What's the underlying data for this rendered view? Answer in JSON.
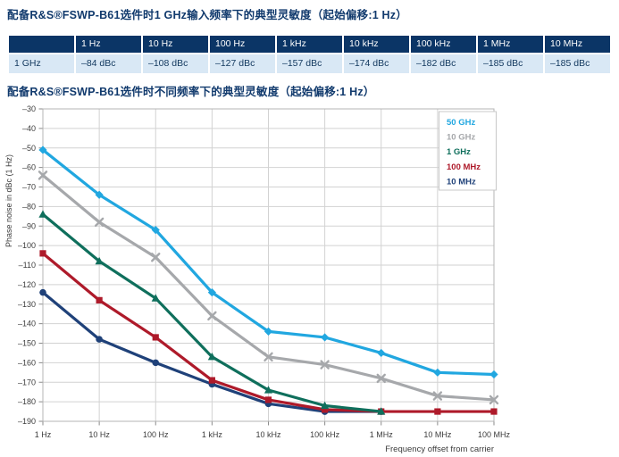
{
  "titles": {
    "table_section": "配备R&S®FSWP-B61选件时1 GHz输入频率下的典型灵敏度（起始偏移:1 Hz）",
    "chart_section": "配备R&S®FSWP-B61选件时不同频率下的典型灵敏度（起始偏移:1 Hz）"
  },
  "table": {
    "corner": "",
    "row_label": "1 GHz",
    "columns": [
      "1 Hz",
      "10 Hz",
      "100 Hz",
      "1 kHz",
      "10 kHz",
      "100 kHz",
      "1 MHz",
      "10 MHz"
    ],
    "values": [
      "–84 dBc",
      "–108 dBc",
      "–127 dBc",
      "–157 dBc",
      "–174 dBc",
      "–182 dBc",
      "–185 dBc",
      "–185 dBc"
    ]
  },
  "chart_data": {
    "type": "line",
    "title": "",
    "xlabel": "Frequency offset from carrier",
    "ylabel": "Phase noise in dBc (1 Hz)",
    "x_scale": "log-decades",
    "x_ticks": [
      "1 Hz",
      "10 Hz",
      "100 Hz",
      "1 kHz",
      "10 kHz",
      "100 kHz",
      "1 MHz",
      "10 MHz",
      "100 MHz"
    ],
    "ylim": [
      -190,
      -30
    ],
    "y_tick_step": 10,
    "grid": true,
    "legend_position": "top-right",
    "series": [
      {
        "name": "50 GHz",
        "color": "#21a7e0",
        "marker": "diamond",
        "values": [
          -51,
          -74,
          -92,
          -124,
          -144,
          -147,
          -155,
          -165,
          -166
        ]
      },
      {
        "name": "10 GHz",
        "color": "#a6a8ab",
        "marker": "x",
        "values": [
          -64,
          -88,
          -106,
          -136,
          -157,
          -161,
          -168,
          -177,
          -179
        ]
      },
      {
        "name": "1 GHz",
        "color": "#0f6f5c",
        "marker": "triangle",
        "values": [
          -84,
          -108,
          -127,
          -157,
          -174,
          -182,
          -185
        ]
      },
      {
        "name": "100 MHz",
        "color": "#ae1a2a",
        "marker": "square",
        "values": [
          -104,
          -128,
          -147,
          -169,
          -179,
          -184,
          -185,
          -185,
          -185
        ]
      },
      {
        "name": "10 MHz",
        "color": "#1f4179",
        "marker": "circle",
        "values": [
          -124,
          -148,
          -160,
          -171,
          -181,
          -185,
          -185
        ]
      }
    ]
  },
  "colors": {
    "title_text": "#113a6d",
    "table_header_bg": "#0b3566",
    "table_header_text": "#ffffff",
    "table_row_bg": "#d9e8f5",
    "table_row_text": "#143a60",
    "grid_line": "#d2d2d2",
    "plot_border": "#b4b4b4",
    "axis_text": "#3c3c3c",
    "legend_bg": "#ffffff",
    "legend_border": "#c8c8c8"
  }
}
